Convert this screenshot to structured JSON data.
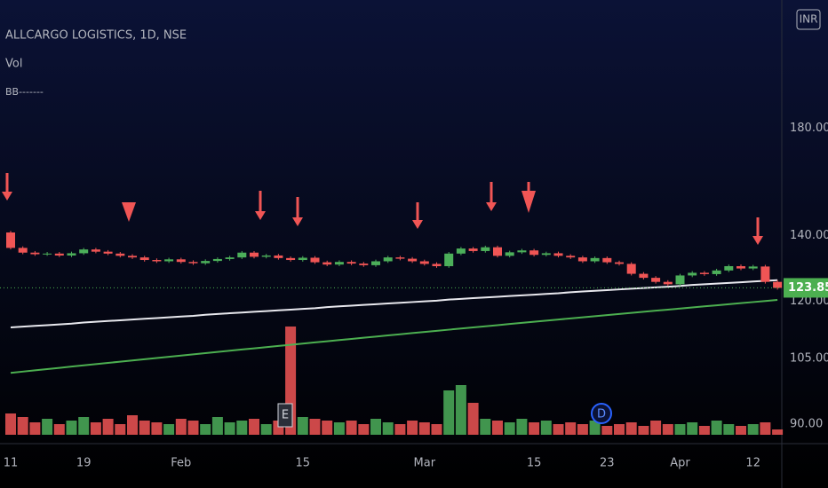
{
  "chart_data": {
    "type": "candlestick",
    "title": "ALLCARGO LOGISTICS, 1D, NSE",
    "volume_label": "Vol",
    "currency": "INR",
    "event_labels": [
      "E",
      "D"
    ],
    "categories": [
      "11",
      null,
      null,
      null,
      null,
      null,
      "19",
      null,
      null,
      null,
      null,
      null,
      null,
      null,
      "Feb",
      null,
      null,
      null,
      null,
      null,
      null,
      null,
      null,
      null,
      "15",
      null,
      null,
      null,
      null,
      null,
      null,
      null,
      null,
      null,
      "Mar",
      null,
      null,
      null,
      null,
      null,
      null,
      null,
      null,
      "15",
      null,
      null,
      null,
      null,
      null,
      "23",
      null,
      null,
      null,
      null,
      null,
      "Apr",
      null,
      null,
      null,
      null,
      null,
      "12",
      null,
      null
    ],
    "open": [
      141,
      136,
      134.5,
      134,
      134.2,
      133.6,
      134.3,
      135.5,
      134.8,
      134.2,
      133.5,
      133,
      132.2,
      131.8,
      132.4,
      131.6,
      131.2,
      131.9,
      132.5,
      133,
      134.5,
      133.2,
      133.6,
      132.8,
      132.2,
      132.9,
      131.5,
      130.8,
      131.6,
      131.1,
      130.6,
      131.8,
      133,
      132.6,
      131.8,
      131,
      130.3,
      134.2,
      135.8,
      135,
      136.2,
      133.5,
      134.6,
      135.2,
      133.8,
      134.3,
      133.5,
      133,
      131.8,
      132.8,
      131.5,
      131,
      128,
      126.8,
      125.6,
      124.9,
      127.5,
      128.3,
      127.9,
      129,
      130.3,
      129.6,
      130.2,
      125.6
    ],
    "high": [
      141.5,
      136.5,
      135,
      134.7,
      134.7,
      134.8,
      136,
      136,
      135.3,
      134.7,
      134,
      133.5,
      132.7,
      132.9,
      132.9,
      132.1,
      132.4,
      133,
      133.5,
      135,
      135,
      134.1,
      134.1,
      133.3,
      133.4,
      133.4,
      132,
      132.1,
      132.1,
      131.6,
      132.3,
      133.5,
      133.5,
      133.1,
      132.3,
      131.5,
      134.7,
      136.3,
      136.3,
      136.7,
      136.7,
      135.1,
      135.7,
      135.7,
      134.8,
      134.8,
      134,
      133.5,
      133.3,
      133.3,
      132,
      131.5,
      128.5,
      127.3,
      126.1,
      128,
      128.8,
      128.8,
      129.5,
      130.8,
      130.8,
      130.7,
      130.7,
      126.1
    ],
    "low": [
      135.5,
      134,
      133.5,
      133.5,
      133.1,
      133.1,
      133.8,
      134.3,
      133.7,
      133,
      132.5,
      131.7,
      131.3,
      131.3,
      131.1,
      130.7,
      130.7,
      131.4,
      132,
      132.5,
      132.7,
      132.7,
      132.3,
      131.7,
      131.7,
      131,
      130.3,
      130.3,
      130.6,
      130.1,
      130.1,
      131.3,
      132.1,
      131.3,
      130.5,
      129.8,
      129.8,
      133.7,
      134.5,
      134.5,
      133,
      133,
      134.1,
      133.3,
      133.3,
      133,
      132.5,
      131.3,
      131.3,
      131,
      130.5,
      127.5,
      126.3,
      125.1,
      124.4,
      124.4,
      127,
      127.4,
      127.4,
      128.5,
      129.1,
      129.1,
      125.1,
      123.35
    ],
    "close": [
      136,
      134.5,
      134,
      134.2,
      133.6,
      134.3,
      135.5,
      134.8,
      134.2,
      133.5,
      133,
      132.2,
      131.8,
      132.4,
      131.6,
      131.2,
      131.9,
      132.5,
      133,
      134.5,
      133.2,
      133.6,
      132.8,
      132.2,
      132.9,
      131.5,
      130.8,
      131.6,
      131.1,
      130.6,
      131.8,
      133,
      132.6,
      131.8,
      131,
      130.3,
      134.2,
      135.8,
      135,
      136.2,
      133.5,
      134.6,
      135.2,
      133.8,
      134.3,
      133.5,
      133,
      131.8,
      132.8,
      131.5,
      131,
      128,
      126.8,
      125.6,
      124.9,
      127.5,
      128.3,
      127.9,
      129,
      130.3,
      129.6,
      130.2,
      125.6,
      123.85
    ],
    "volume": [
      12,
      10,
      7,
      9,
      6,
      8,
      10,
      7,
      9,
      6,
      11,
      8,
      7,
      6,
      9,
      8,
      6,
      10,
      7,
      8,
      9,
      6,
      8,
      61,
      10,
      9,
      8,
      7,
      8,
      6,
      9,
      7,
      6,
      8,
      7,
      6,
      25,
      28,
      18,
      9,
      8,
      7,
      9,
      7,
      8,
      6,
      7,
      6,
      8,
      5,
      6,
      7,
      5,
      8,
      6,
      6,
      7,
      5,
      8,
      6,
      5,
      6,
      7,
      3
    ],
    "up_color": "#4caf5a",
    "down_color": "#f05555",
    "lines": [
      {
        "color": "#e8e8ee",
        "values": [
          112.9,
          113.1,
          113.3,
          113.5,
          113.7,
          113.9,
          114.2,
          114.4,
          114.6,
          114.8,
          115.0,
          115.2,
          115.4,
          115.6,
          115.8,
          116.0,
          116.3,
          116.5,
          116.7,
          116.9,
          117.1,
          117.3,
          117.5,
          117.7,
          117.9,
          118.1,
          118.4,
          118.6,
          118.8,
          119.0,
          119.2,
          119.4,
          119.6,
          119.8,
          120.0,
          120.2,
          120.5,
          120.7,
          120.9,
          121.1,
          121.3,
          121.5,
          121.7,
          121.9,
          122.1,
          122.3,
          122.6,
          122.8,
          123.0,
          123.2,
          123.4,
          123.6,
          123.8,
          124.0,
          124.2,
          124.4,
          124.7,
          124.9,
          125.1,
          125.3,
          125.5,
          125.7,
          125.9,
          126.1
        ]
      },
      {
        "color": "#4caf50",
        "values": [
          101.5,
          101.8,
          102.1,
          102.4,
          102.7,
          103.0,
          103.3,
          103.6,
          103.9,
          104.2,
          104.5,
          104.8,
          105.1,
          105.4,
          105.7,
          106.0,
          106.3,
          106.6,
          106.9,
          107.2,
          107.5,
          107.8,
          108.1,
          108.4,
          108.7,
          109.0,
          109.3,
          109.6,
          109.9,
          110.2,
          110.5,
          110.8,
          111.1,
          111.4,
          111.7,
          112.0,
          112.3,
          112.6,
          112.9,
          113.2,
          113.5,
          113.8,
          114.1,
          114.4,
          114.7,
          115.0,
          115.3,
          115.6,
          115.9,
          116.2,
          116.5,
          116.8,
          117.1,
          117.4,
          117.7,
          118.0,
          118.3,
          118.6,
          118.9,
          119.2,
          119.5,
          119.8,
          120.1,
          120.4
        ]
      }
    ],
    "log_scale": true,
    "ylim": [
      86,
      243
    ],
    "yticks": [
      {
        "value": 90,
        "label": "90.00"
      },
      {
        "value": 105,
        "label": "105.00"
      },
      {
        "value": 120,
        "label": "120.00"
      },
      {
        "value": 140,
        "label": "140.00"
      },
      {
        "value": 180,
        "label": "180.00"
      }
    ],
    "y2lim": [
      0,
      100
    ],
    "last_value": 123.85,
    "last_value_color": "#4caf50"
  }
}
